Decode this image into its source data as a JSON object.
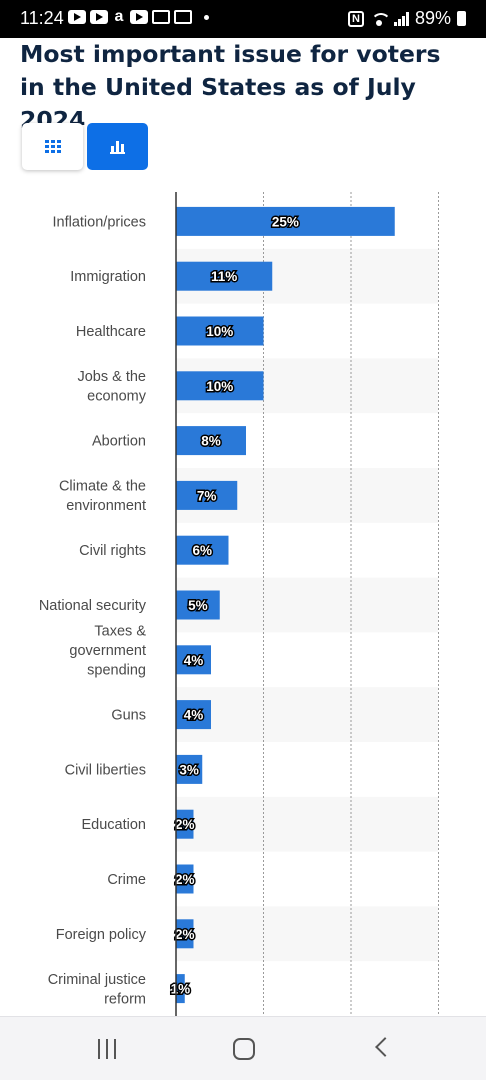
{
  "status_bar": {
    "time": "11:24",
    "battery": "89%",
    "icons": [
      "youtube-icon",
      "youtube-icon",
      "amazon-icon",
      "youtube-icon",
      "news-icon",
      "news-icon",
      "notification-dot-icon",
      "nfc-icon",
      "wifi-icon",
      "signal-icon",
      "battery-icon"
    ]
  },
  "title": "Most important issue for voters in the United States as of July 2024",
  "view_toggle": {
    "options": [
      "table-view-icon",
      "chart-view-icon"
    ],
    "selected": "chart-view-icon"
  },
  "colors": {
    "bar": "#2a79d8",
    "title": "#0f2541",
    "accent": "#0d6fe6"
  },
  "chart_data": {
    "type": "bar",
    "orientation": "horizontal",
    "categories": [
      "Inflation/prices",
      "Immigration",
      "Healthcare",
      "Jobs & the economy",
      "Abortion",
      "Climate & the environment",
      "Civil rights",
      "National security",
      "Taxes & government spending",
      "Guns",
      "Civil liberties",
      "Education",
      "Crime",
      "Foreign policy",
      "Criminal justice reform"
    ],
    "category_lines": [
      [
        "Inflation/prices"
      ],
      [
        "Immigration"
      ],
      [
        "Healthcare"
      ],
      [
        "Jobs & the",
        "economy"
      ],
      [
        "Abortion"
      ],
      [
        "Climate & the",
        "environment"
      ],
      [
        "Civil rights"
      ],
      [
        "National security"
      ],
      [
        "Taxes &",
        "government",
        "spending"
      ],
      [
        "Guns"
      ],
      [
        "Civil liberties"
      ],
      [
        "Education"
      ],
      [
        "Crime"
      ],
      [
        "Foreign policy"
      ],
      [
        "Criminal justice",
        "reform"
      ]
    ],
    "values": [
      25,
      11,
      10,
      10,
      8,
      7,
      6,
      5,
      4,
      4,
      3,
      2,
      2,
      2,
      1
    ],
    "value_labels": [
      "25%",
      "11%",
      "10%",
      "10%",
      "8%",
      "7%",
      "6%",
      "5%",
      "4%",
      "4%",
      "3%",
      "2%",
      "2%",
      "2%",
      "1%"
    ],
    "xlim": [
      0,
      30
    ],
    "gridlines_at": [
      10,
      20,
      30
    ],
    "grid": true,
    "title": "Most important issue for voters in the United States as of July 2024",
    "xlabel": "",
    "ylabel": ""
  }
}
